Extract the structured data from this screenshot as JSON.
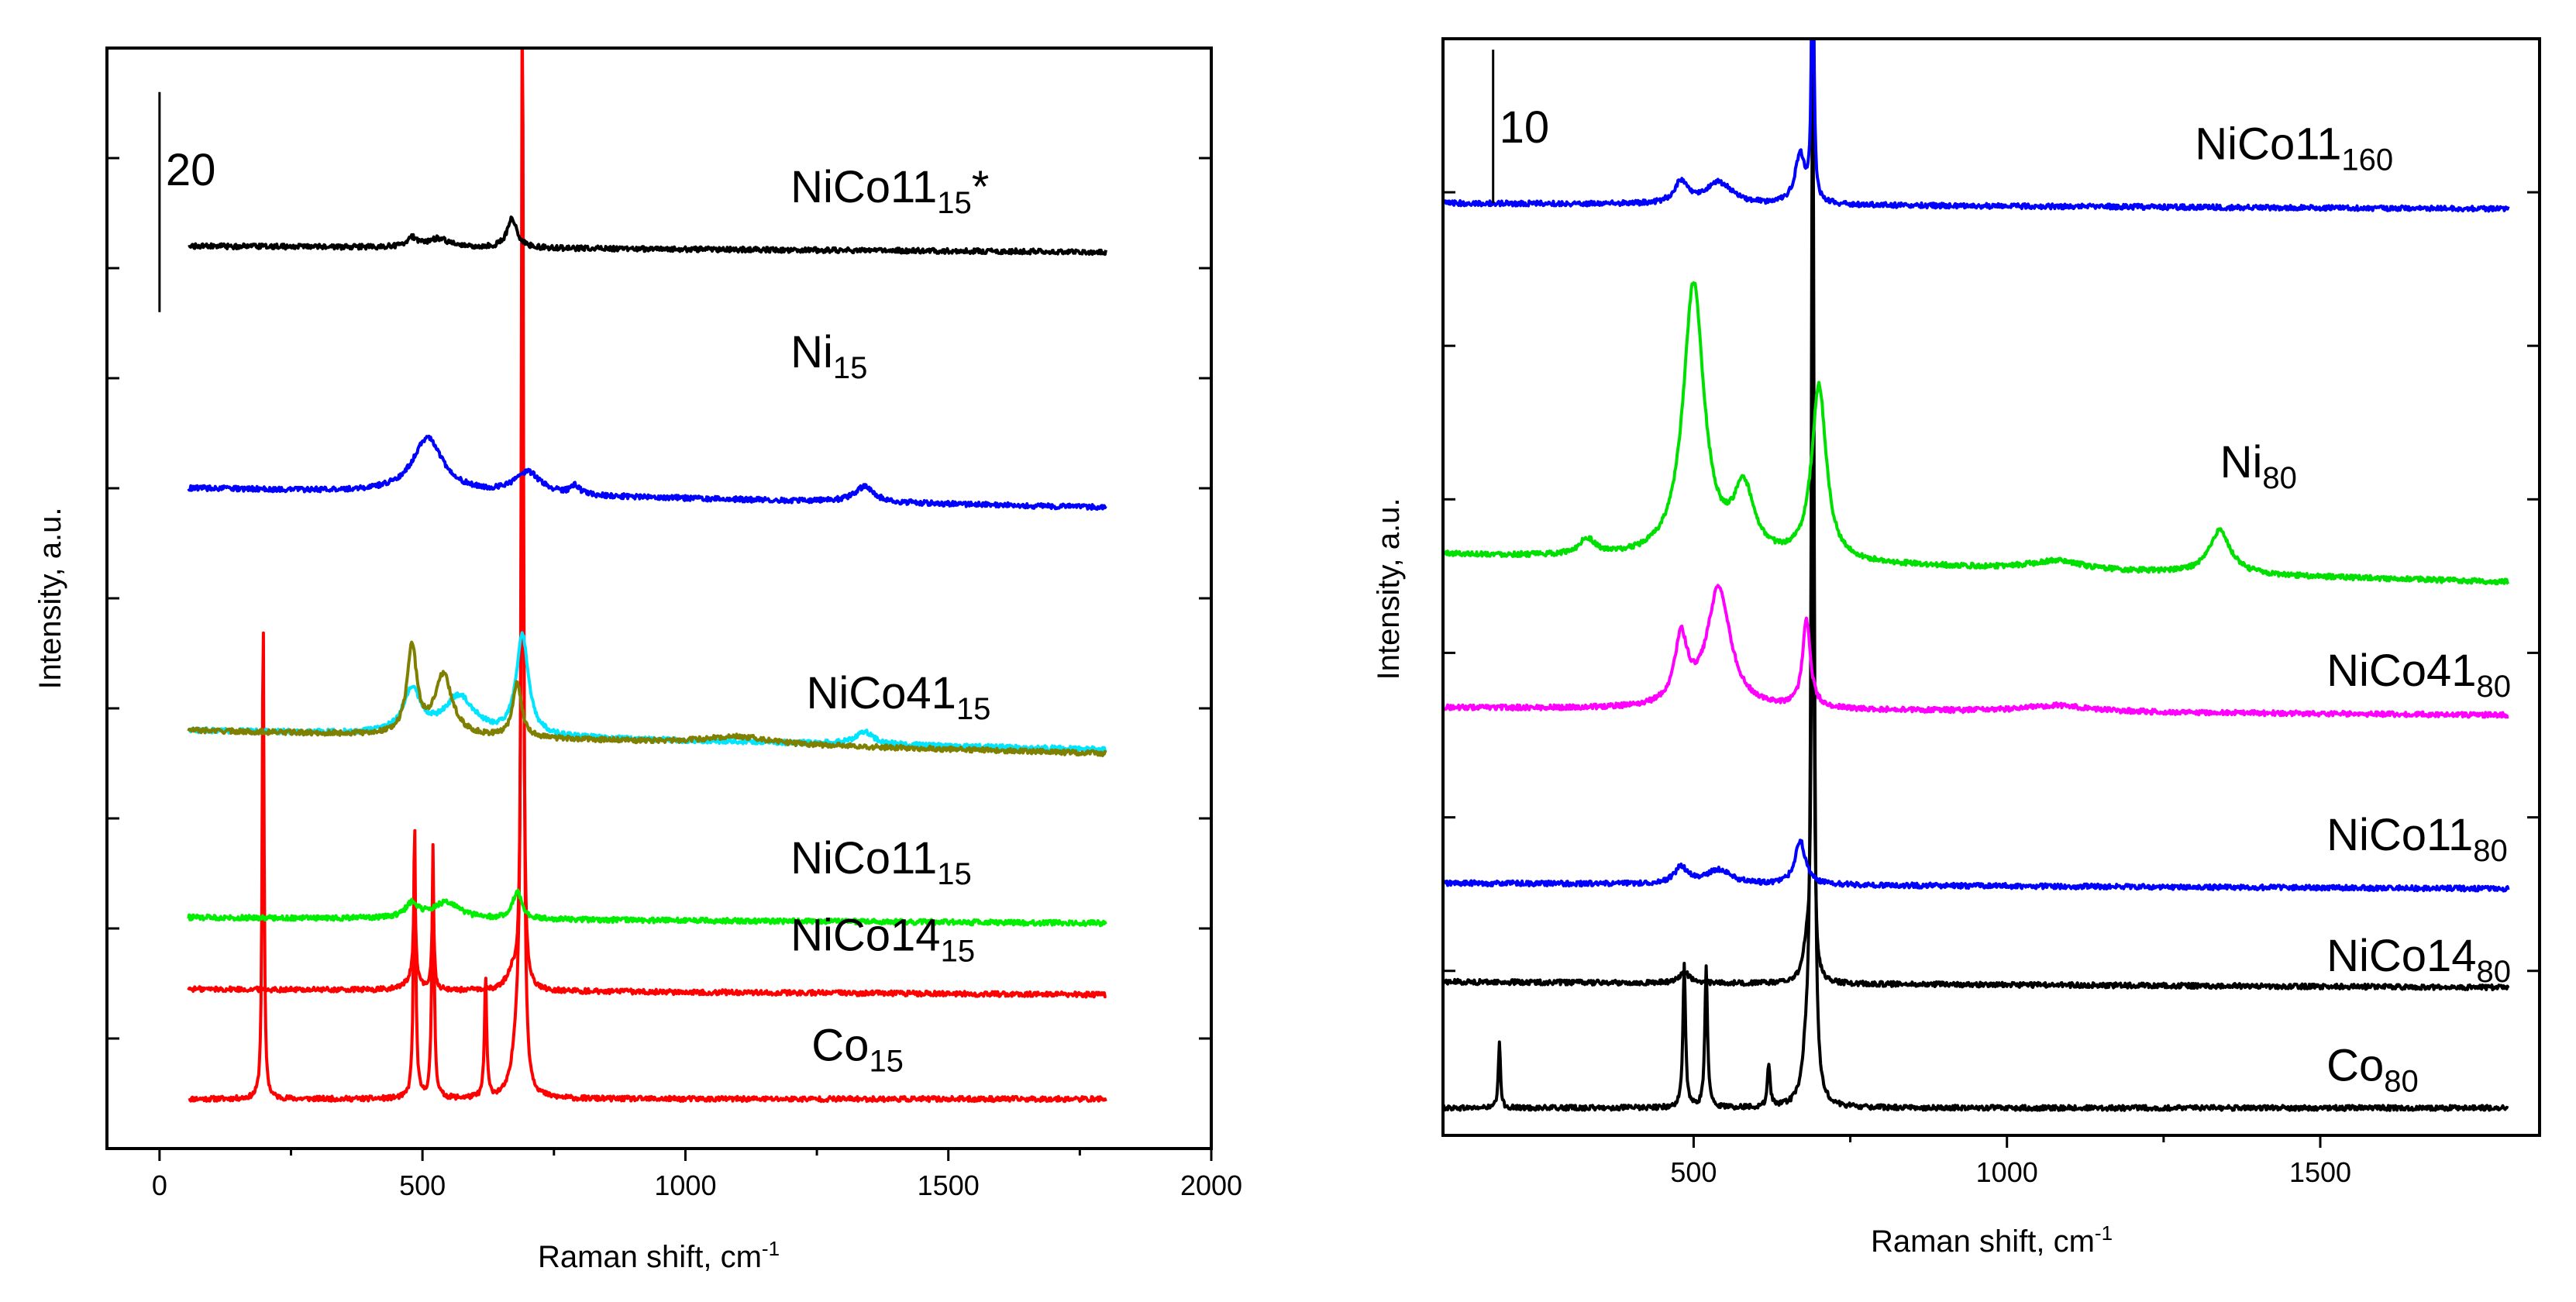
{
  "chart_data": [
    {
      "type": "line",
      "title": "",
      "xlabel": "Raman shift, cm",
      "xlabel_sup": "-1",
      "ylabel": "Intensity, a.u.",
      "xlim": [
        -100,
        2000
      ],
      "ylim": [
        0,
        100
      ],
      "xticks": [
        0,
        500,
        1000,
        1500,
        2000
      ],
      "xtick_labels": [
        "0",
        "500",
        "1000",
        "1500",
        "2000"
      ],
      "yticks": [
        10,
        20,
        30,
        40,
        50,
        60,
        70,
        80,
        90
      ],
      "grid": false,
      "scale_bar": {
        "label": "20",
        "x": 0,
        "y_from": 76,
        "y_to": 96
      },
      "series": [
        {
          "name": "Co",
          "sub": "15",
          "suffix": "",
          "color": "#ff0000",
          "x_start": 55,
          "x_end": 1800,
          "base": 4.5,
          "slope": 0.0,
          "peaks": [
            [
              197,
              45,
              4
            ],
            [
              485,
              25,
              5
            ],
            [
              520,
              23,
              5
            ],
            [
              620,
              11,
              5
            ],
            [
              690,
              100,
              5
            ],
            [
              680,
              5,
              20
            ]
          ],
          "label_x": 1240,
          "label_y": 8,
          "note_clip": true
        },
        {
          "name": "NiCo14",
          "sub": "15",
          "suffix": "",
          "color": "#ff0000",
          "x_start": 55,
          "x_end": 1800,
          "base": 14.5,
          "slope": -0.3,
          "peaks": [
            [
              485,
              9,
              5
            ],
            [
              520,
              8,
              5
            ],
            [
              690,
              70,
              5
            ],
            [
              670,
              1.5,
              25
            ],
            [
              480,
              1,
              30
            ]
          ],
          "label_x": 1200,
          "label_y": 18,
          "note_clip": true
        },
        {
          "name": "NiCo11",
          "sub": "15",
          "suffix": "",
          "color": "#00ee00",
          "x_start": 55,
          "x_end": 1800,
          "base": 21,
          "slope": -0.3,
          "peaks": [
            [
              480,
              1.3,
              30
            ],
            [
              545,
              1.5,
              60
            ],
            [
              680,
              2.5,
              20
            ]
          ],
          "label_x": 1200,
          "label_y": 25
        },
        {
          "name": "NiCo41",
          "sub": "15",
          "suffix": "",
          "color": "#00e5ff",
          "x_start": 55,
          "x_end": 1800,
          "base": 38,
          "slope": -1.0,
          "peaks": [
            [
              480,
              4,
              40
            ],
            [
              570,
              3.5,
              70
            ],
            [
              690,
              9,
              28
            ],
            [
              1340,
              1.2,
              40
            ]
          ],
          "label_x": 1230,
          "label_y": 40
        },
        {
          "name": "NiCo41b",
          "sub": "",
          "suffix": "",
          "color": "#7f7f00",
          "x_start": 55,
          "x_end": 1800,
          "base": 38,
          "slope": -1.2,
          "peaks": [
            [
              480,
              8,
              22
            ],
            [
              540,
              5.5,
              40
            ],
            [
              680,
              5,
              20
            ],
            [
              1100,
              0.7,
              150
            ]
          ],
          "label_x": -999,
          "label_y": -999
        },
        {
          "name": "Ni",
          "sub": "15",
          "suffix": "",
          "color": "#0000ff",
          "x_start": 55,
          "x_end": 1800,
          "base": 60,
          "slope": -1.0,
          "peaks": [
            [
              510,
              5,
              70
            ],
            [
              700,
              2,
              60
            ],
            [
              790,
              0.8,
              20
            ],
            [
              1340,
              1.4,
              45
            ]
          ],
          "label_x": 1200,
          "label_y": 71
        },
        {
          "name": "NiCo11",
          "sub": "15",
          "suffix": "*",
          "color": "#000000",
          "x_start": 55,
          "x_end": 1800,
          "base": 82,
          "slope": -0.3,
          "peaks": [
            [
              480,
              0.8,
              25
            ],
            [
              530,
              0.8,
              50
            ],
            [
              670,
              2.7,
              22
            ]
          ],
          "label_x": 1200,
          "label_y": 86
        }
      ]
    },
    {
      "type": "line",
      "title": "",
      "xlabel": "Raman shift, cm",
      "xlabel_sup": "-1",
      "ylabel": "Intensity, a.u.",
      "xlim": [
        100,
        1850
      ],
      "ylim": [
        0,
        100
      ],
      "xticks": [
        500,
        1000,
        1500
      ],
      "xtick_labels": [
        "500",
        "1000",
        "1500"
      ],
      "yticks": [
        15,
        29,
        44,
        58,
        72,
        86
      ],
      "grid": false,
      "scale_bar": {
        "label": "10",
        "x": 180,
        "y_from": 85,
        "y_to": 99
      },
      "series": [
        {
          "name": "Co",
          "sub": "80",
          "suffix": "",
          "color": "#000000",
          "x_start": 100,
          "x_end": 1800,
          "base": 2.5,
          "slope": 0.0,
          "peaks": [
            [
              190,
              6,
              4
            ],
            [
              485,
              13,
              5
            ],
            [
              520,
              13,
              5
            ],
            [
              620,
              4,
              5
            ],
            [
              690,
              100,
              5
            ],
            [
              680,
              4,
              15
            ]
          ],
          "label_x": 1510,
          "label_y": 5,
          "note_clip": true
        },
        {
          "name": "NiCo14",
          "sub": "80",
          "suffix": "",
          "color": "#000000",
          "x_start": 100,
          "x_end": 1800,
          "base": 14,
          "slope": -0.3,
          "peaks": [
            [
              485,
              1,
              20
            ],
            [
              680,
              3,
              15
            ],
            [
              690,
              60,
              4
            ]
          ],
          "label_x": 1510,
          "label_y": 15,
          "note_clip": true
        },
        {
          "name": "NiCo11",
          "sub": "80",
          "suffix": "",
          "color": "#0000ff",
          "x_start": 100,
          "x_end": 1800,
          "base": 23,
          "slope": -0.3,
          "peaks": [
            [
              480,
              1.5,
              25
            ],
            [
              540,
              1.3,
              50
            ],
            [
              670,
              4,
              20
            ]
          ],
          "label_x": 1510,
          "label_y": 26
        },
        {
          "name": "NiCo41",
          "sub": "80",
          "suffix": "",
          "color": "#ff00ff",
          "x_start": 100,
          "x_end": 1800,
          "base": 39,
          "slope": -0.4,
          "peaks": [
            [
              480,
              6,
              25
            ],
            [
              540,
              11,
              45
            ],
            [
              680,
              8,
              15
            ],
            [
              1080,
              0.6,
              120
            ]
          ],
          "label_x": 1510,
          "label_y": 41
        },
        {
          "name": "Ni",
          "sub": "80",
          "suffix": "",
          "color": "#00e000",
          "x_start": 100,
          "x_end": 1800,
          "base": 53,
          "slope": -1.5,
          "peaks": [
            [
              500,
              25,
              40
            ],
            [
              580,
              6,
              40
            ],
            [
              700,
              16,
              28
            ],
            [
              1080,
              0.8,
              100
            ],
            [
              1340,
              4,
              40
            ],
            [
              330,
              1.5,
              30
            ]
          ],
          "label_x": 1340,
          "label_y": 60
        },
        {
          "name": "NiCo11",
          "sub": "160",
          "suffix": "",
          "color": "#0000ff",
          "x_start": 100,
          "x_end": 1800,
          "base": 85,
          "slope": -0.3,
          "peaks": [
            [
              480,
              2,
              25
            ],
            [
              540,
              2,
              50
            ],
            [
              670,
              4.5,
              20
            ],
            [
              690,
              30,
              4
            ]
          ],
          "label_x": 1300,
          "label_y": 89,
          "note_clip": true
        }
      ]
    }
  ]
}
